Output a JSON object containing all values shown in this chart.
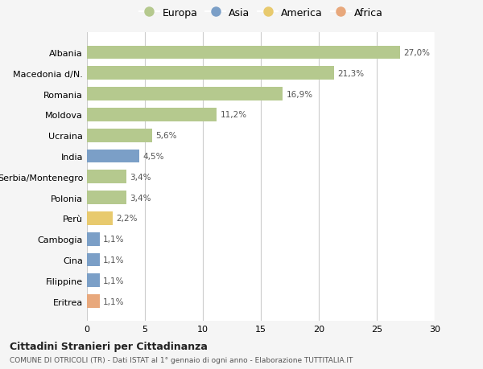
{
  "countries": [
    "Albania",
    "Macedonia d/N.",
    "Romania",
    "Moldova",
    "Ucraina",
    "India",
    "Serbia/Montenegro",
    "Polonia",
    "Perù",
    "Cambogia",
    "Cina",
    "Filippine",
    "Eritrea"
  ],
  "values": [
    27.0,
    21.3,
    16.9,
    11.2,
    5.6,
    4.5,
    3.4,
    3.4,
    2.2,
    1.1,
    1.1,
    1.1,
    1.1
  ],
  "labels": [
    "27,0%",
    "21,3%",
    "16,9%",
    "11,2%",
    "5,6%",
    "4,5%",
    "3,4%",
    "3,4%",
    "2,2%",
    "1,1%",
    "1,1%",
    "1,1%",
    "1,1%"
  ],
  "continents": [
    "Europa",
    "Europa",
    "Europa",
    "Europa",
    "Europa",
    "Asia",
    "Europa",
    "Europa",
    "America",
    "Asia",
    "Asia",
    "Asia",
    "Africa"
  ],
  "colors": {
    "Europa": "#b5c98e",
    "Asia": "#7b9fc7",
    "America": "#e8ca6e",
    "Africa": "#e8a87c"
  },
  "legend_order": [
    "Europa",
    "Asia",
    "America",
    "Africa"
  ],
  "title": "Cittadini Stranieri per Cittadinanza",
  "subtitle": "COMUNE DI OTRICOLI (TR) - Dati ISTAT al 1° gennaio di ogni anno - Elaborazione TUTTITALIA.IT",
  "xlim": [
    0,
    30
  ],
  "xticks": [
    0,
    5,
    10,
    15,
    20,
    25,
    30
  ],
  "fig_bg_color": "#f5f5f5",
  "plot_bg_color": "#ffffff"
}
